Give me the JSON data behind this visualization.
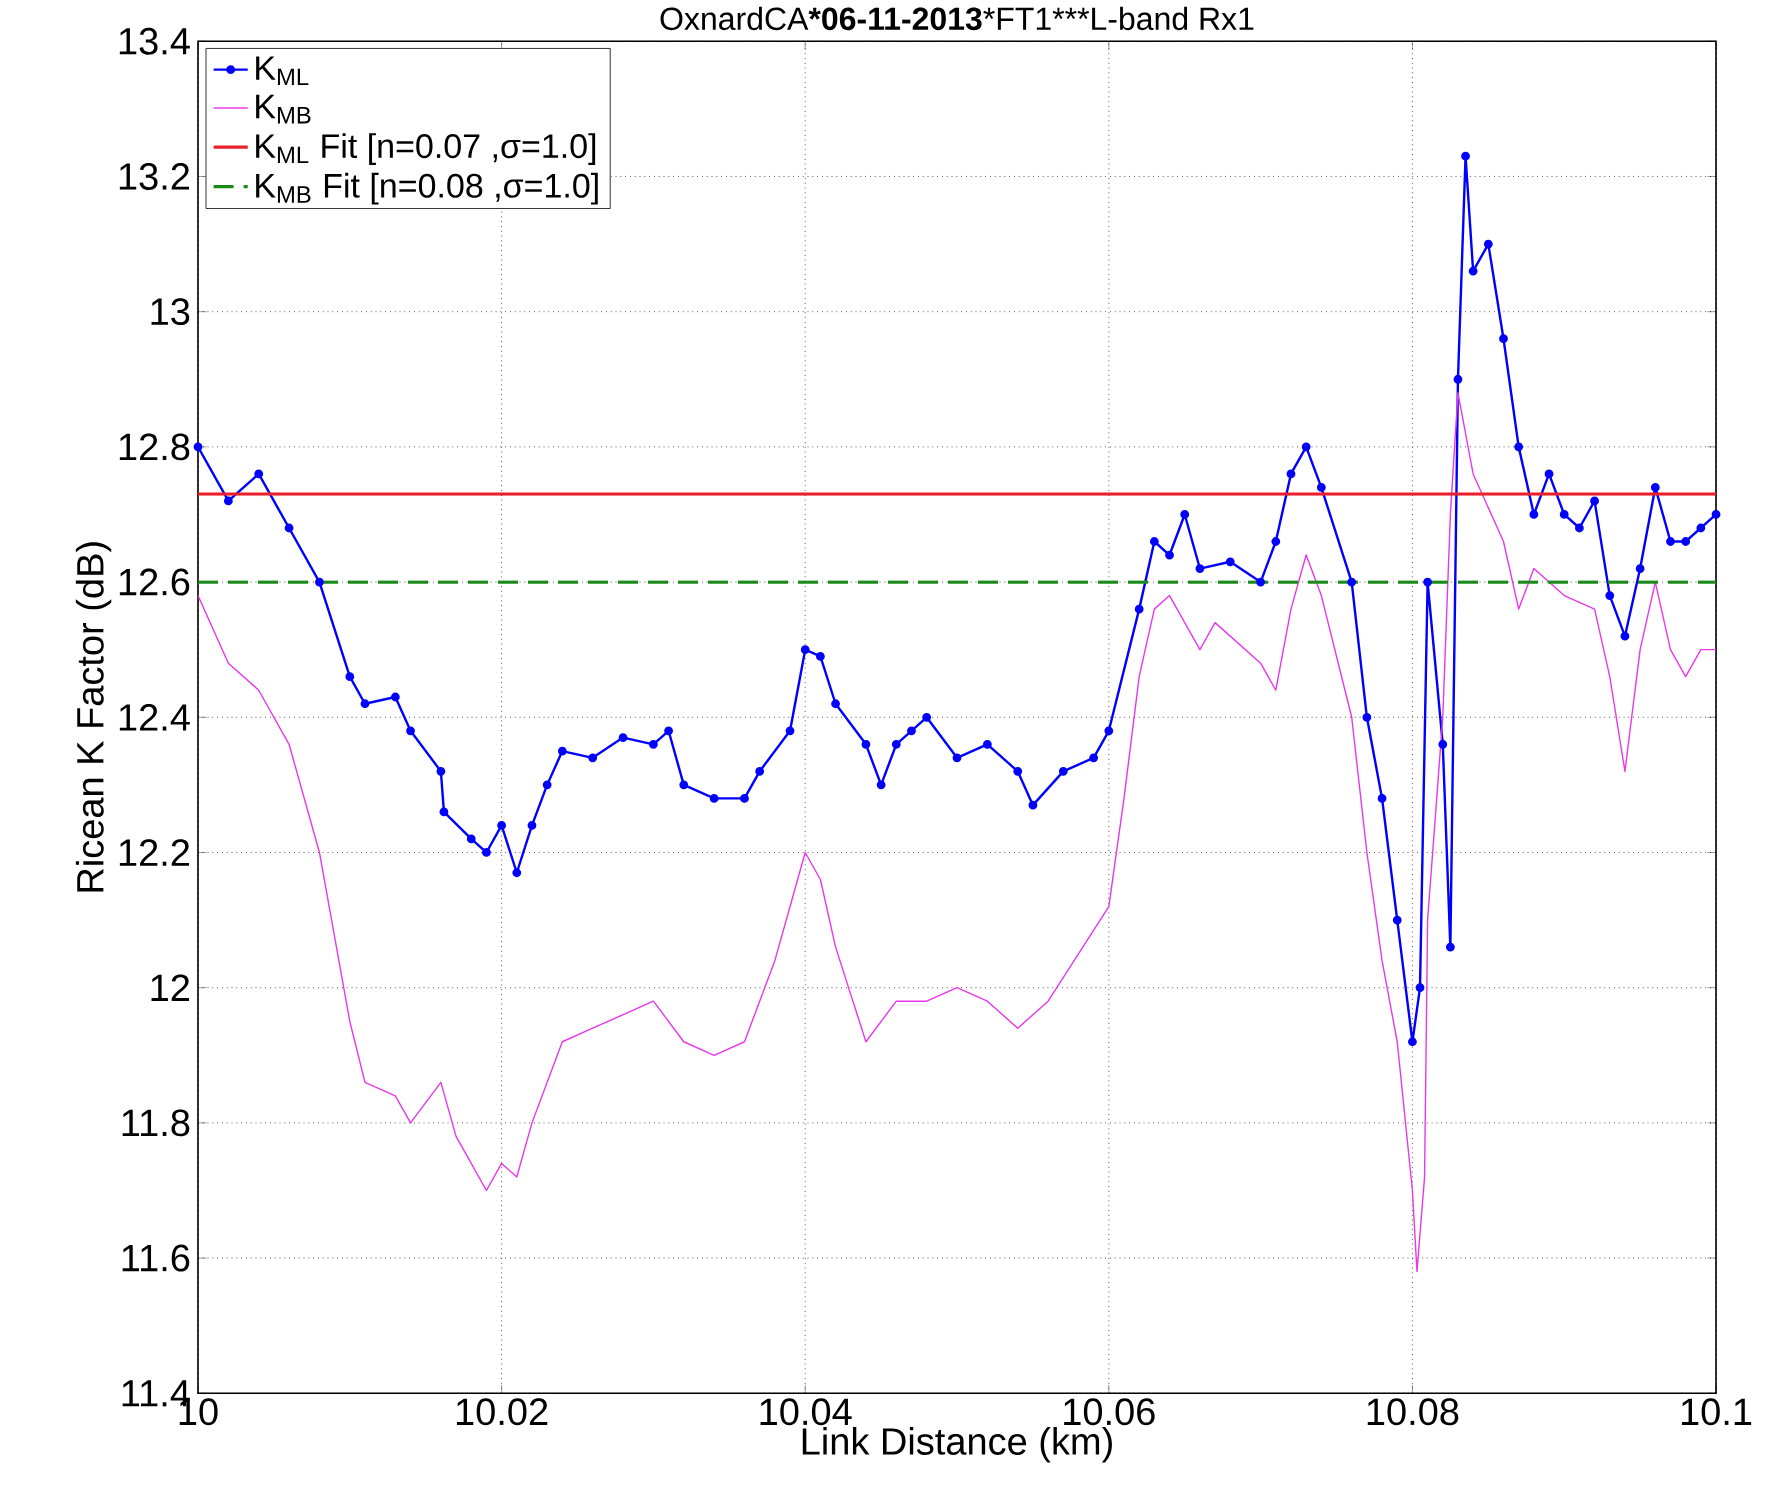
{
  "chart_data": {
    "type": "line",
    "title": "OxnardCA***06-11-2013***FT1***L-band Rx1",
    "xlabel": "Link Distance (km)",
    "ylabel": "Ricean K Factor (dB)",
    "xlim": [
      10,
      10.1
    ],
    "ylim": [
      11.4,
      13.4
    ],
    "xticks": [
      10,
      10.02,
      10.04,
      10.06,
      10.08,
      {
        "value": 10.1,
        "label": "10.1"
      }
    ],
    "yticks": [
      11.4,
      11.6,
      11.8,
      12,
      12.2,
      12.4,
      12.6,
      12.8,
      13,
      13.2,
      13.4
    ],
    "grid": true,
    "legend": "top left",
    "series": [
      {
        "name": "K$_{ML}$",
        "color": "#0000ff",
        "marker": "circle",
        "line_style": "solid",
        "x": [
          10.0,
          10.002,
          10.004,
          10.006,
          10.008,
          10.01,
          10.011,
          10.013,
          10.014,
          10.016,
          10.0162,
          10.018,
          10.019,
          10.02,
          10.021,
          10.022,
          10.023,
          10.024,
          10.026,
          10.028,
          10.03,
          10.031,
          10.032,
          10.034,
          10.036,
          10.037,
          10.039,
          10.04,
          10.041,
          10.042,
          10.044,
          10.045,
          10.046,
          10.047,
          10.048,
          10.05,
          10.052,
          10.054,
          10.055,
          10.057,
          10.059,
          10.06,
          10.062,
          10.063,
          10.064,
          10.065,
          10.066,
          10.068,
          10.07,
          10.071,
          10.072,
          10.073,
          10.074,
          10.076,
          10.077,
          10.078,
          10.079,
          10.08,
          10.0805,
          10.081,
          10.082,
          10.0825,
          10.083,
          10.0835,
          10.084,
          10.085,
          10.086,
          10.087,
          10.088,
          10.089,
          10.09,
          10.091,
          10.092,
          10.093,
          10.094,
          10.095,
          10.096,
          10.097,
          10.098,
          10.099,
          10.1
        ],
        "values": [
          12.8,
          12.72,
          12.76,
          12.68,
          12.6,
          12.46,
          12.42,
          12.43,
          12.38,
          12.32,
          12.26,
          12.22,
          12.2,
          12.24,
          12.17,
          12.24,
          12.3,
          12.35,
          12.34,
          12.37,
          12.36,
          12.38,
          12.3,
          12.28,
          12.28,
          12.32,
          12.38,
          12.5,
          12.49,
          12.42,
          12.36,
          12.3,
          12.36,
          12.38,
          12.4,
          12.34,
          12.36,
          12.32,
          12.27,
          12.32,
          12.34,
          12.38,
          12.56,
          12.66,
          12.64,
          12.7,
          12.62,
          12.63,
          12.6,
          12.66,
          12.76,
          12.8,
          12.74,
          12.6,
          12.4,
          12.28,
          12.1,
          11.92,
          12.0,
          12.6,
          12.36,
          12.06,
          12.9,
          13.23,
          13.06,
          13.1,
          12.96,
          12.8,
          12.7,
          12.76,
          12.7,
          12.68,
          12.72,
          12.58,
          12.52,
          12.62,
          12.74,
          12.66,
          12.66,
          12.68,
          12.7
        ]
      },
      {
        "name": "K$_{MB}$",
        "color": "#e838e8",
        "marker": "none",
        "line_style": "solid",
        "x": [
          10.0,
          10.002,
          10.004,
          10.006,
          10.008,
          10.01,
          10.011,
          10.013,
          10.014,
          10.016,
          10.017,
          10.018,
          10.019,
          10.02,
          10.021,
          10.022,
          10.024,
          10.026,
          10.028,
          10.03,
          10.032,
          10.034,
          10.036,
          10.038,
          10.04,
          10.041,
          10.042,
          10.044,
          10.046,
          10.048,
          10.05,
          10.052,
          10.054,
          10.056,
          10.058,
          10.06,
          10.061,
          10.062,
          10.063,
          10.064,
          10.066,
          10.067,
          10.068,
          10.07,
          10.071,
          10.072,
          10.073,
          10.074,
          10.076,
          10.077,
          10.078,
          10.079,
          10.08,
          10.0803,
          10.0808,
          10.081,
          10.082,
          10.0825,
          10.083,
          10.084,
          10.086,
          10.087,
          10.088,
          10.09,
          10.092,
          10.093,
          10.094,
          10.095,
          10.096,
          10.097,
          10.098,
          10.099,
          10.1
        ],
        "values": [
          12.58,
          12.48,
          12.44,
          12.36,
          12.2,
          11.95,
          11.86,
          11.84,
          11.8,
          11.86,
          11.78,
          11.74,
          11.7,
          11.74,
          11.72,
          11.8,
          11.92,
          11.94,
          11.96,
          11.98,
          11.92,
          11.9,
          11.92,
          12.04,
          12.2,
          12.16,
          12.06,
          11.92,
          11.98,
          11.98,
          12.0,
          11.98,
          11.94,
          11.98,
          12.05,
          12.12,
          12.28,
          12.46,
          12.56,
          12.58,
          12.5,
          12.54,
          12.52,
          12.48,
          12.44,
          12.56,
          12.64,
          12.58,
          12.4,
          12.2,
          12.04,
          11.92,
          11.7,
          11.58,
          11.72,
          12.1,
          12.4,
          12.7,
          12.88,
          12.76,
          12.66,
          12.56,
          12.62,
          12.58,
          12.56,
          12.46,
          12.32,
          12.5,
          12.6,
          12.5,
          12.46,
          12.5,
          12.5
        ]
      },
      {
        "name": "K$_{ML}$ Fit [n=0.07 ,σ=1.0]",
        "color": "#e8202a",
        "marker": "none",
        "line_style": "solid",
        "x": [
          10.0,
          10.1
        ],
        "values": [
          12.73,
          12.73
        ]
      },
      {
        "name": "K$_{MB}$ Fit [n=0.08 ,σ=1.0]",
        "color": "#1a8a1a",
        "marker": "none",
        "line_style": "dashed",
        "x": [
          10.0,
          10.1
        ],
        "values": [
          12.6,
          12.6
        ]
      }
    ]
  }
}
